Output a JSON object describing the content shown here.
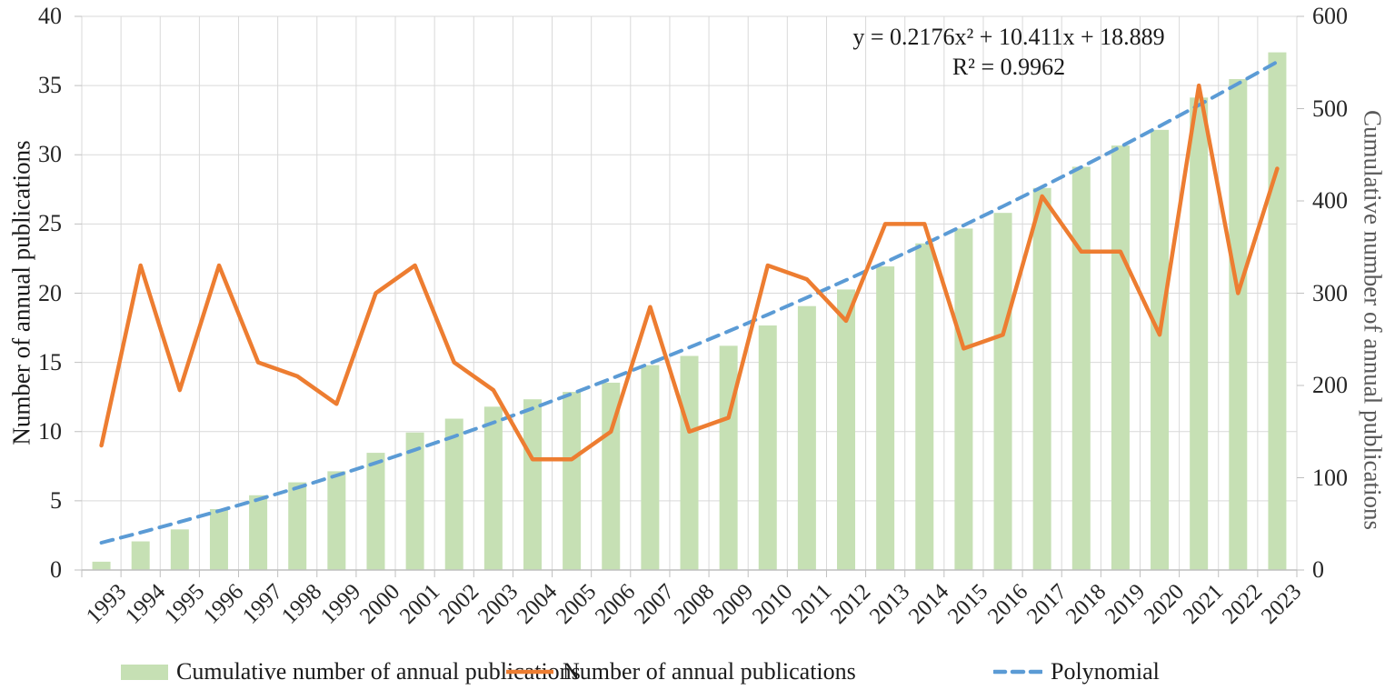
{
  "figure": {
    "left_axis": {
      "title": "Number of annual publications",
      "tick_labels": [
        "0",
        "5",
        "10",
        "15",
        "20",
        "25",
        "30",
        "35",
        "40"
      ]
    },
    "right_axis": {
      "title": "Cumulative number of annual publications",
      "tick_labels": [
        "0",
        "100",
        "200",
        "300",
        "400",
        "500",
        "600"
      ]
    },
    "annotation": {
      "line1": "y = 0.2176x² + 10.411x + 18.889",
      "line2": "R² = 0.9962"
    },
    "legend": {
      "bar_label": "Cumulative number of annual publications",
      "line_label": "Number of annual publications",
      "trend_label": "Polynomial"
    },
    "colors": {
      "bar": "#C6E0B4",
      "line": "#ED7D31",
      "trend": "#5B9BD5",
      "gridline": "#D9D9D9",
      "axis_line": "#BFBFBF"
    }
  },
  "chart_data": {
    "type": "bar",
    "subtype": "combo-bar-line-trendline",
    "categories": [
      "1993",
      "1994",
      "1995",
      "1996",
      "1997",
      "1998",
      "1999",
      "2000",
      "2001",
      "2002",
      "2003",
      "2004",
      "2005",
      "2006",
      "2007",
      "2008",
      "2009",
      "2010",
      "2011",
      "2012",
      "2013",
      "2014",
      "2015",
      "2016",
      "2017",
      "2018",
      "2019",
      "2020",
      "2021",
      "2022",
      "2023"
    ],
    "series": [
      {
        "name": "Cumulative number of annual publications",
        "type": "bar",
        "axis": "right",
        "color": "#C6E0B4",
        "values": [
          9,
          31,
          44,
          66,
          81,
          95,
          107,
          127,
          149,
          164,
          177,
          185,
          193,
          203,
          222,
          232,
          243,
          265,
          286,
          304,
          329,
          354,
          370,
          387,
          414,
          437,
          460,
          477,
          512,
          532,
          561
        ]
      },
      {
        "name": "Number of annual publications",
        "type": "line",
        "axis": "left",
        "color": "#ED7D31",
        "values": [
          9,
          22,
          13,
          22,
          15,
          14,
          12,
          20,
          22,
          15,
          13,
          8,
          8,
          10,
          19,
          10,
          11,
          22,
          21,
          18,
          25,
          25,
          16,
          17,
          27,
          23,
          23,
          17,
          35,
          20,
          29
        ]
      },
      {
        "name": "Polynomial",
        "type": "trendline",
        "axis": "right",
        "style": "dashed",
        "color": "#5B9BD5",
        "equation": {
          "a": 0.2176,
          "b": 10.411,
          "c": 18.889
        },
        "equation_text": "y = 0.2176x² + 10.411x + 18.889",
        "r_squared_text": "R² = 0.9962"
      }
    ],
    "left_ylabel": "Number of annual publications",
    "right_ylabel": "Cumulative number of annual publications",
    "left_ylim": [
      0,
      40
    ],
    "left_ytick_step": 5,
    "right_ylim": [
      0,
      600
    ],
    "right_ytick_step": 100,
    "grid": true,
    "legend_position": "bottom"
  }
}
